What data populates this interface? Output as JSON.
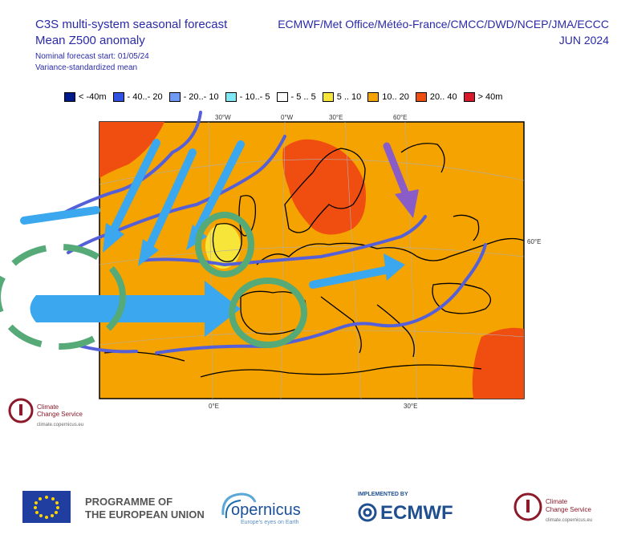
{
  "header": {
    "title_line1": "C3S multi-system seasonal forecast",
    "title_line2": "Mean Z500 anomaly",
    "subtitle_line1": "Nominal forecast start: 01/05/24",
    "subtitle_line2": "Variance-standardized mean",
    "providers": "ECMWF/Met Office/Météo-France/CMCC/DWD/NCEP/JMA/ECCC",
    "valid_month": "JUN 2024"
  },
  "legend": [
    {
      "label": "< -40m",
      "color": "#001a8c"
    },
    {
      "label": "- 40..- 20",
      "color": "#2f52e0"
    },
    {
      "label": "- 20..- 10",
      "color": "#6f9bf5"
    },
    {
      "label": "- 10..- 5",
      "color": "#7ee8f5"
    },
    {
      "label": "- 5 .. 5",
      "color": "#ffffff"
    },
    {
      "label": "5 .. 10",
      "color": "#f7e53a"
    },
    {
      "label": "10.. 20",
      "color": "#f5a300"
    },
    {
      "label": "20.. 40",
      "color": "#f04e10"
    },
    {
      "label": "> 40m",
      "color": "#d81a2a"
    }
  ],
  "map": {
    "lon_labels_top": [
      "30°W",
      "0°W",
      "30°E",
      "60°E"
    ],
    "lon_labels_bottom": [
      "0°E",
      "30°E"
    ],
    "lat_labels": [
      "60°E"
    ],
    "background_color": "#f5a300",
    "high_anomaly_color": "#f04e10",
    "low_anomaly_color": "#f7e53a"
  },
  "logos": {
    "c3s_name_line1": "Climate",
    "c3s_name_line2": "Change Service",
    "c3s_url": "climate.copernicus.eu",
    "programme_line1": "PROGRAMME OF",
    "programme_line2": "THE EUROPEAN UNION",
    "copernicus_name": "opernicus",
    "copernicus_tagline": "Europe's eyes on Earth",
    "ecmwf_implemented": "IMPLEMENTED BY",
    "ecmwf_name": "ECMWF"
  }
}
